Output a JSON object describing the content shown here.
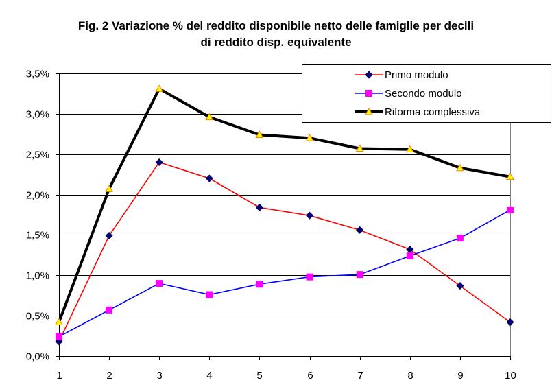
{
  "chart_data": {
    "type": "line",
    "title_lines": [
      "Fig. 2 Variazione % del reddito disponibile netto delle famiglie per decili",
      "di reddito disp. equivalente"
    ],
    "xlabel": "",
    "ylabel": "",
    "x": [
      1,
      2,
      3,
      4,
      5,
      6,
      7,
      8,
      9,
      10
    ],
    "x_tick_labels": [
      "1",
      "2",
      "3",
      "4",
      "5",
      "6",
      "7",
      "8",
      "9",
      "10"
    ],
    "ylim": [
      0,
      3.5
    ],
    "y_ticks": [
      0,
      0.5,
      1.0,
      1.5,
      2.0,
      2.5,
      3.0,
      3.5
    ],
    "y_tick_labels": [
      "0,0%",
      "0,5%",
      "1,0%",
      "1,5%",
      "2,0%",
      "2,5%",
      "3,0%",
      "3,5%"
    ],
    "grid": "horizontal",
    "legend_position": "top-right",
    "series": [
      {
        "name": "Primo modulo",
        "line_color": "#ff0000",
        "marker": "diamond",
        "marker_color": "#000080",
        "values": [
          0.18,
          1.49,
          2.4,
          2.2,
          1.84,
          1.74,
          1.56,
          1.32,
          0.87,
          0.42
        ]
      },
      {
        "name": "Secondo modulo",
        "line_color": "#0000ff",
        "marker": "square",
        "marker_color": "#ff00ff",
        "values": [
          0.24,
          0.57,
          0.9,
          0.76,
          0.89,
          0.98,
          1.01,
          1.24,
          1.46,
          1.81
        ]
      },
      {
        "name": "Riforma complessiva",
        "line_color": "#000000",
        "marker": "triangle",
        "marker_color": "#ffff00",
        "values": [
          0.42,
          2.07,
          3.31,
          2.96,
          2.74,
          2.7,
          2.57,
          2.56,
          2.33,
          2.22
        ]
      }
    ]
  }
}
